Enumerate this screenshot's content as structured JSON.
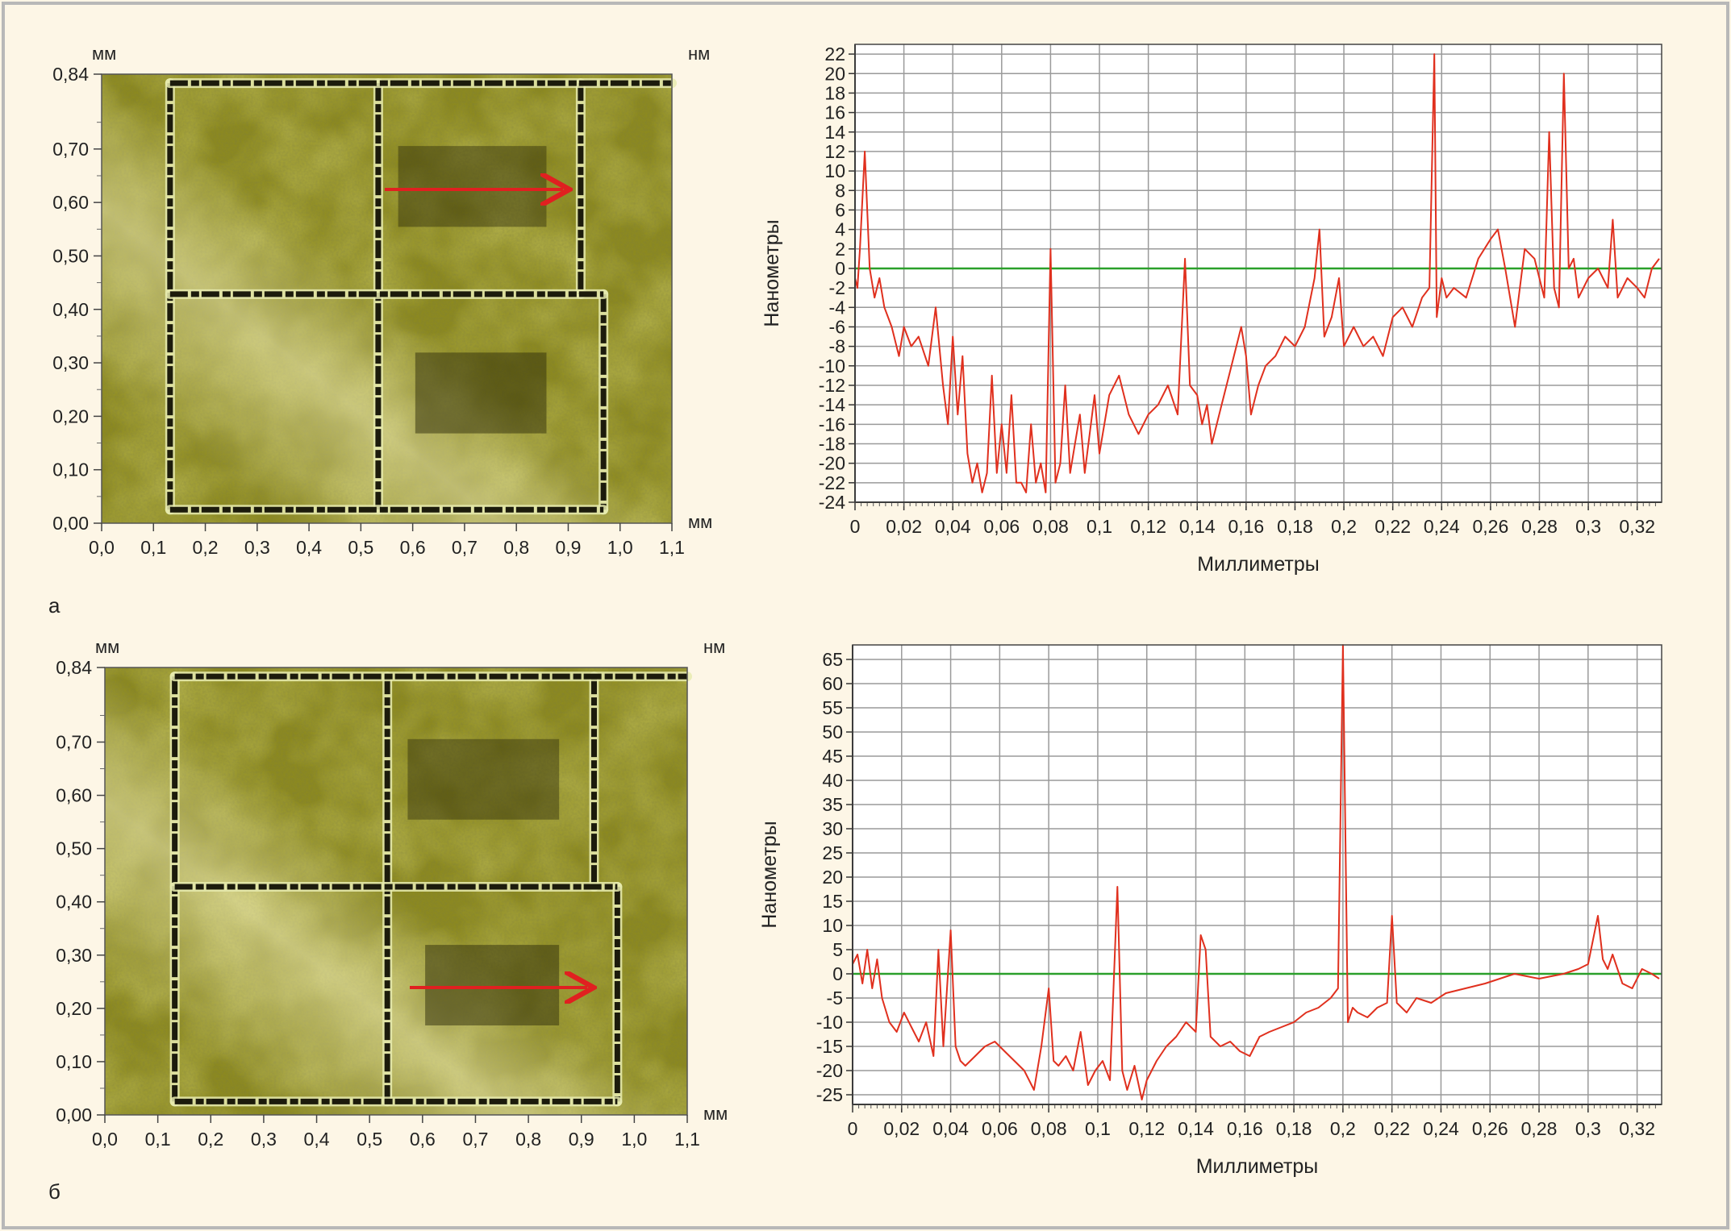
{
  "panels": [
    {
      "letter": "а",
      "image": {
        "y_unit": "мм",
        "z_unit": "нм",
        "x_unit": "мм",
        "x_ticks": [
          "0,0",
          "0,1",
          "0,2",
          "0,3",
          "0,4",
          "0,5",
          "0,6",
          "0,7",
          "0,8",
          "0,9",
          "1,0",
          "1,1"
        ],
        "y_ticks": [
          "0,00",
          "0,10",
          "0,20",
          "0,30",
          "0,40",
          "0,50",
          "0,60",
          "0,70",
          "0,84"
        ],
        "colors": {
          "base": "#8e8b1a",
          "light": "#e8ecb0",
          "dark": "#2e2c0a",
          "groove": "#1c1b0c",
          "arrow": "#e02020"
        }
      }
    },
    {
      "letter": "б",
      "image": {
        "y_unit": "мм",
        "z_unit": "нм",
        "x_unit": "мм",
        "x_ticks": [
          "0,0",
          "0,1",
          "0,2",
          "0,3",
          "0,4",
          "0,5",
          "0,6",
          "0,7",
          "0,8",
          "0,9",
          "1,0",
          "1,1"
        ],
        "y_ticks": [
          "0,00",
          "0,10",
          "0,20",
          "0,30",
          "0,40",
          "0,50",
          "0,60",
          "0,70",
          "0,84"
        ],
        "colors": {
          "base": "#8e8b1a",
          "light": "#e8ecb0",
          "dark": "#2e2c0a",
          "groove": "#1c1b0c",
          "arrow": "#e02020"
        }
      }
    }
  ],
  "chart_data": [
    {
      "type": "line",
      "xlabel": "Миллиметры",
      "ylabel": "Нанометры",
      "xlim": [
        0,
        0.33
      ],
      "ylim": [
        -24,
        23
      ],
      "x_ticks": [
        "0",
        "0,02",
        "0,04",
        "0,06",
        "0,08",
        "0,1",
        "0,12",
        "0,14",
        "0,16",
        "0,18",
        "0,2",
        "0,22",
        "0,24",
        "0,26",
        "0,28",
        "0,3",
        "0,32"
      ],
      "y_ticks": [
        "22",
        "20",
        "18",
        "16",
        "14",
        "12",
        "10",
        "8",
        "6",
        "4",
        "2",
        "0",
        "-2",
        "-4",
        "-6",
        "-8",
        "-10",
        "-12",
        "-14",
        "-16",
        "-18",
        "-20",
        "-22",
        "-24"
      ],
      "grid": true,
      "reference_line": 0,
      "colors": {
        "profile": "#e0301e",
        "reference": "#2aa02a",
        "grid": "#9a9a9a"
      },
      "series": [
        {
          "x": [
            0,
            0.001,
            0.002,
            0.004,
            0.006,
            0.008,
            0.01,
            0.012,
            0.015,
            0.018,
            0.02,
            0.023,
            0.026,
            0.03,
            0.033,
            0.036,
            0.038,
            0.04,
            0.042,
            0.044,
            0.046,
            0.048,
            0.05,
            0.052,
            0.054,
            0.056,
            0.058,
            0.06,
            0.062,
            0.064,
            0.066,
            0.068,
            0.07,
            0.072,
            0.074,
            0.076,
            0.078,
            0.08,
            0.082,
            0.084,
            0.086,
            0.088,
            0.09,
            0.092,
            0.094,
            0.096,
            0.098,
            0.1,
            0.104,
            0.108,
            0.112,
            0.116,
            0.12,
            0.124,
            0.128,
            0.132,
            0.135,
            0.137,
            0.14,
            0.142,
            0.144,
            0.146,
            0.15,
            0.154,
            0.158,
            0.16,
            0.162,
            0.165,
            0.168,
            0.172,
            0.176,
            0.18,
            0.184,
            0.188,
            0.19,
            0.192,
            0.195,
            0.198,
            0.2,
            0.204,
            0.208,
            0.212,
            0.216,
            0.22,
            0.224,
            0.228,
            0.232,
            0.235,
            0.237,
            0.238,
            0.24,
            0.242,
            0.245,
            0.25,
            0.255,
            0.26,
            0.263,
            0.266,
            0.27,
            0.274,
            0.278,
            0.282,
            0.284,
            0.286,
            0.288,
            0.29,
            0.292,
            0.294,
            0.296,
            0.3,
            0.304,
            0.308,
            0.31,
            0.312,
            0.316,
            0.32,
            0.323,
            0.326,
            0.329
          ],
          "y": [
            -1,
            -2,
            2,
            12,
            0,
            -3,
            -1,
            -4,
            -6,
            -9,
            -6,
            -8,
            -7,
            -10,
            -4,
            -12,
            -16,
            -7,
            -15,
            -9,
            -19,
            -22,
            -20,
            -23,
            -21,
            -11,
            -21,
            -16,
            -21,
            -13,
            -22,
            -22,
            -23,
            -16,
            -22,
            -20,
            -23,
            2,
            -22,
            -20,
            -12,
            -21,
            -18,
            -15,
            -21,
            -17,
            -13,
            -19,
            -13,
            -11,
            -15,
            -17,
            -15,
            -14,
            -12,
            -15,
            1,
            -12,
            -13,
            -16,
            -14,
            -18,
            -14,
            -10,
            -6,
            -9,
            -15,
            -12,
            -10,
            -9,
            -7,
            -8,
            -6,
            -1,
            4,
            -7,
            -5,
            -1,
            -8,
            -6,
            -8,
            -7,
            -9,
            -5,
            -4,
            -6,
            -3,
            -2,
            22,
            -5,
            -1,
            -3,
            -2,
            -3,
            1,
            3,
            4,
            0,
            -6,
            2,
            1,
            -3,
            14,
            -2,
            -4,
            20,
            0,
            1,
            -3,
            -1,
            0,
            -2,
            5,
            -3,
            -1,
            -2,
            -3,
            0,
            1
          ]
        }
      ]
    },
    {
      "type": "line",
      "xlabel": "Миллиметры",
      "ylabel": "Нанометры",
      "xlim": [
        0,
        0.33
      ],
      "ylim": [
        -27,
        68
      ],
      "x_ticks": [
        "0",
        "0,02",
        "0,04",
        "0,06",
        "0,08",
        "0,1",
        "0,12",
        "0,14",
        "0,16",
        "0,18",
        "0,2",
        "0,22",
        "0,24",
        "0,26",
        "0,28",
        "0,3",
        "0,32"
      ],
      "y_ticks": [
        "65",
        "60",
        "55",
        "50",
        "45",
        "40",
        "35",
        "30",
        "25",
        "20",
        "15",
        "10",
        "5",
        "0",
        "-5",
        "-10",
        "-15",
        "-20",
        "-25"
      ],
      "grid": true,
      "reference_line": 0,
      "colors": {
        "profile": "#e0301e",
        "reference": "#2aa02a",
        "grid": "#9a9a9a"
      },
      "series": [
        {
          "x": [
            0,
            0.002,
            0.004,
            0.006,
            0.008,
            0.01,
            0.012,
            0.015,
            0.018,
            0.021,
            0.024,
            0.027,
            0.03,
            0.033,
            0.035,
            0.037,
            0.04,
            0.042,
            0.044,
            0.046,
            0.05,
            0.054,
            0.058,
            0.062,
            0.066,
            0.07,
            0.074,
            0.077,
            0.08,
            0.082,
            0.084,
            0.087,
            0.09,
            0.093,
            0.096,
            0.099,
            0.102,
            0.105,
            0.108,
            0.11,
            0.112,
            0.115,
            0.118,
            0.12,
            0.124,
            0.128,
            0.132,
            0.136,
            0.14,
            0.142,
            0.144,
            0.146,
            0.15,
            0.154,
            0.158,
            0.162,
            0.166,
            0.17,
            0.175,
            0.18,
            0.185,
            0.19,
            0.195,
            0.198,
            0.2,
            0.202,
            0.204,
            0.206,
            0.21,
            0.214,
            0.218,
            0.22,
            0.222,
            0.226,
            0.23,
            0.236,
            0.242,
            0.25,
            0.258,
            0.264,
            0.27,
            0.28,
            0.29,
            0.296,
            0.3,
            0.304,
            0.306,
            0.308,
            0.31,
            0.314,
            0.318,
            0.322,
            0.326,
            0.329
          ],
          "y": [
            2,
            4,
            -2,
            5,
            -3,
            3,
            -5,
            -10,
            -12,
            -8,
            -11,
            -14,
            -10,
            -17,
            5,
            -15,
            9,
            -15,
            -18,
            -19,
            -17,
            -15,
            -14,
            -16,
            -18,
            -20,
            -24,
            -15,
            -3,
            -18,
            -19,
            -17,
            -20,
            -12,
            -23,
            -20,
            -18,
            -22,
            18,
            -20,
            -24,
            -19,
            -26,
            -22,
            -18,
            -15,
            -13,
            -10,
            -12,
            8,
            5,
            -13,
            -15,
            -14,
            -16,
            -17,
            -13,
            -12,
            -11,
            -10,
            -8,
            -7,
            -5,
            -3,
            68,
            -10,
            -7,
            -8,
            -9,
            -7,
            -6,
            12,
            -6,
            -8,
            -5,
            -6,
            -4,
            -3,
            -2,
            -1,
            0,
            -1,
            0,
            1,
            2,
            12,
            3,
            1,
            4,
            -2,
            -3,
            1,
            0,
            -1
          ]
        }
      ]
    }
  ]
}
